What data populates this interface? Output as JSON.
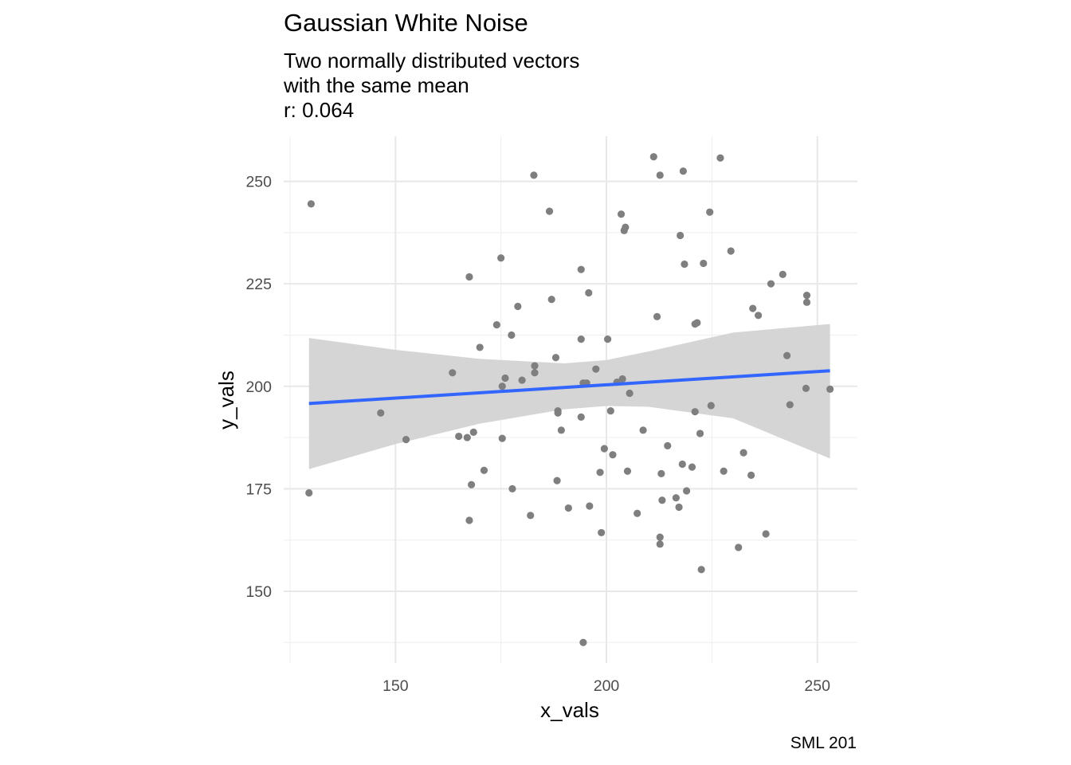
{
  "chart_data": {
    "type": "scatter",
    "title": "Gaussian White Noise",
    "subtitle_lines": [
      "Two normally distributed vectors",
      "with the same mean",
      "r: 0.064"
    ],
    "caption": "SML 201",
    "xlabel": "x_vals",
    "ylabel": "y_vals",
    "xlim": [
      123.5,
      259.5
    ],
    "ylim": [
      132.5,
      261
    ],
    "x_ticks": [
      150,
      200,
      250
    ],
    "y_ticks": [
      150,
      175,
      200,
      225,
      250
    ],
    "grid": true,
    "point_color": "#7f7f7f",
    "fit_line_color": "#3366ff",
    "band_color": "#d3d3d3",
    "fit_line": {
      "x": [
        129.5,
        253
      ],
      "y": [
        195.8,
        203.8
      ]
    },
    "confidence_band": {
      "x": [
        129.5,
        150,
        170,
        190,
        200,
        210,
        230,
        253
      ],
      "lower": [
        179.8,
        185.9,
        190.9,
        194.4,
        195.2,
        195,
        192.2,
        182.4
      ],
      "upper": [
        211.8,
        208.9,
        206.7,
        205.6,
        206.4,
        208.5,
        213.1,
        215.2
      ]
    },
    "points": [
      {
        "x": 129.5,
        "y": 174
      },
      {
        "x": 130,
        "y": 244.5
      },
      {
        "x": 146.5,
        "y": 193.5
      },
      {
        "x": 152.5,
        "y": 187
      },
      {
        "x": 163.5,
        "y": 203.3
      },
      {
        "x": 165,
        "y": 187.8
      },
      {
        "x": 167,
        "y": 187.5
      },
      {
        "x": 167.5,
        "y": 167.3
      },
      {
        "x": 167.5,
        "y": 226.7
      },
      {
        "x": 168,
        "y": 176
      },
      {
        "x": 168.5,
        "y": 188.8
      },
      {
        "x": 170,
        "y": 209.5
      },
      {
        "x": 171,
        "y": 179.5
      },
      {
        "x": 174,
        "y": 215
      },
      {
        "x": 175,
        "y": 231.3
      },
      {
        "x": 175.3,
        "y": 200
      },
      {
        "x": 175.3,
        "y": 187.3
      },
      {
        "x": 176,
        "y": 202
      },
      {
        "x": 177.5,
        "y": 212.5
      },
      {
        "x": 177.7,
        "y": 175
      },
      {
        "x": 179,
        "y": 219.5
      },
      {
        "x": 180,
        "y": 201.5
      },
      {
        "x": 182,
        "y": 168.5
      },
      {
        "x": 182.8,
        "y": 251.5
      },
      {
        "x": 183,
        "y": 205
      },
      {
        "x": 183,
        "y": 203.3
      },
      {
        "x": 186.5,
        "y": 242.7
      },
      {
        "x": 187,
        "y": 221.2
      },
      {
        "x": 188,
        "y": 207
      },
      {
        "x": 188.3,
        "y": 177
      },
      {
        "x": 188.5,
        "y": 194
      },
      {
        "x": 188.5,
        "y": 193.5
      },
      {
        "x": 189.3,
        "y": 189.3
      },
      {
        "x": 191,
        "y": 170.3
      },
      {
        "x": 194,
        "y": 228.5
      },
      {
        "x": 194,
        "y": 211.5
      },
      {
        "x": 194,
        "y": 192.5
      },
      {
        "x": 194.5,
        "y": 137.5
      },
      {
        "x": 194.5,
        "y": 200.8
      },
      {
        "x": 195.3,
        "y": 200.8
      },
      {
        "x": 195.8,
        "y": 222.8
      },
      {
        "x": 196,
        "y": 170.8
      },
      {
        "x": 197.5,
        "y": 204.2
      },
      {
        "x": 198.5,
        "y": 179
      },
      {
        "x": 198.8,
        "y": 164.3
      },
      {
        "x": 199.5,
        "y": 184.8
      },
      {
        "x": 200.3,
        "y": 211.5
      },
      {
        "x": 201,
        "y": 194
      },
      {
        "x": 201.5,
        "y": 183.3
      },
      {
        "x": 202.5,
        "y": 201
      },
      {
        "x": 203.5,
        "y": 242
      },
      {
        "x": 203.8,
        "y": 201.8
      },
      {
        "x": 204.2,
        "y": 238
      },
      {
        "x": 204.5,
        "y": 238.8
      },
      {
        "x": 205,
        "y": 179.3
      },
      {
        "x": 205.5,
        "y": 198.3
      },
      {
        "x": 207.3,
        "y": 169
      },
      {
        "x": 208.7,
        "y": 189.3
      },
      {
        "x": 211.2,
        "y": 256
      },
      {
        "x": 212,
        "y": 217
      },
      {
        "x": 212.7,
        "y": 251.5
      },
      {
        "x": 212.7,
        "y": 163.2
      },
      {
        "x": 212.7,
        "y": 161.5
      },
      {
        "x": 213,
        "y": 178.7
      },
      {
        "x": 213.2,
        "y": 172.2
      },
      {
        "x": 214.5,
        "y": 185.5
      },
      {
        "x": 216.5,
        "y": 172.8
      },
      {
        "x": 217.2,
        "y": 170.5
      },
      {
        "x": 217.5,
        "y": 236.8
      },
      {
        "x": 218,
        "y": 181
      },
      {
        "x": 218.2,
        "y": 252.5
      },
      {
        "x": 218.5,
        "y": 229.8
      },
      {
        "x": 219,
        "y": 174.5
      },
      {
        "x": 220.3,
        "y": 180.3
      },
      {
        "x": 221,
        "y": 215.2
      },
      {
        "x": 221,
        "y": 193.8
      },
      {
        "x": 221.5,
        "y": 215.5
      },
      {
        "x": 222.2,
        "y": 188.5
      },
      {
        "x": 222.5,
        "y": 155.3
      },
      {
        "x": 223,
        "y": 230
      },
      {
        "x": 224.5,
        "y": 242.5
      },
      {
        "x": 224.8,
        "y": 195.3
      },
      {
        "x": 227,
        "y": 255.7
      },
      {
        "x": 227.8,
        "y": 179.3
      },
      {
        "x": 229.5,
        "y": 233
      },
      {
        "x": 231.3,
        "y": 160.7
      },
      {
        "x": 232.5,
        "y": 183.8
      },
      {
        "x": 234.3,
        "y": 178.3
      },
      {
        "x": 234.7,
        "y": 219
      },
      {
        "x": 236,
        "y": 217.3
      },
      {
        "x": 237.8,
        "y": 164
      },
      {
        "x": 239,
        "y": 225
      },
      {
        "x": 241.8,
        "y": 227.3
      },
      {
        "x": 242.8,
        "y": 207.5
      },
      {
        "x": 243.5,
        "y": 195.5
      },
      {
        "x": 247.3,
        "y": 199.5
      },
      {
        "x": 247.5,
        "y": 222.2
      },
      {
        "x": 247.5,
        "y": 220.5
      },
      {
        "x": 253,
        "y": 199.3
      }
    ]
  }
}
